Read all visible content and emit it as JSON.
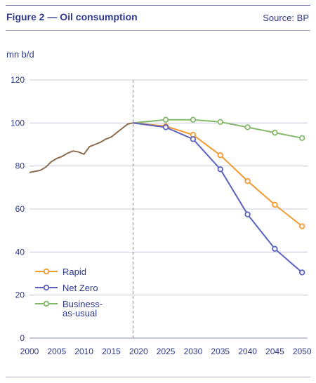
{
  "header": {
    "title": "Figure 2 — Oil consumption",
    "source": "Source: BP"
  },
  "colors": {
    "text": "#2f3a8f",
    "grid": "#c9cbe0",
    "history": "#8b6c4f",
    "rapid": "#f29a2e",
    "net_zero": "#5b62c0",
    "bau": "#84b86a"
  },
  "chart_data": {
    "type": "line",
    "ylabel": "mn b/d",
    "xlim": [
      2000,
      2051
    ],
    "ylim": [
      0,
      120
    ],
    "x_ticks": [
      "2000",
      "2005",
      "2010",
      "2015",
      "2020",
      "2025",
      "2030",
      "2035",
      "2040",
      "2045",
      "2050"
    ],
    "y_ticks": [
      "0",
      "20",
      "40",
      "60",
      "80",
      "100",
      "120"
    ],
    "grid": "horizontal",
    "reference_line_x": 2019,
    "legend_position": "bottom-left",
    "series": [
      {
        "key": "history",
        "x": [
          2000,
          2001,
          2002,
          2003,
          2004,
          2005,
          2006,
          2007,
          2008,
          2009,
          2010,
          2011,
          2012,
          2013,
          2014,
          2015,
          2016,
          2017,
          2018,
          2019
        ],
        "values": [
          77,
          77.5,
          78,
          79.5,
          82,
          83.5,
          84.5,
          86,
          87,
          86.5,
          85.5,
          89,
          90,
          91,
          92.5,
          93.5,
          95.5,
          97.5,
          99.5,
          100
        ],
        "markers": false
      },
      {
        "key": "bau",
        "name": "Business-as-usual",
        "legend_lines": [
          "Business-",
          "as-usual"
        ],
        "x": [
          2019,
          2025,
          2030,
          2035,
          2040,
          2045,
          2050
        ],
        "values": [
          100,
          101.5,
          101.5,
          100.5,
          98,
          95.5,
          93
        ],
        "markers": true
      },
      {
        "key": "rapid",
        "name": "Rapid",
        "legend_lines": [
          "Rapid"
        ],
        "x": [
          2019,
          2025,
          2030,
          2035,
          2040,
          2045,
          2050
        ],
        "values": [
          100,
          98.5,
          94.5,
          85,
          73,
          62,
          52
        ],
        "markers": true
      },
      {
        "key": "net_zero",
        "name": "Net Zero",
        "legend_lines": [
          "Net Zero"
        ],
        "x": [
          2019,
          2025,
          2030,
          2035,
          2040,
          2045,
          2050
        ],
        "values": [
          100,
          98,
          92.5,
          78.5,
          57.5,
          41.5,
          30.5
        ],
        "markers": true
      }
    ]
  }
}
